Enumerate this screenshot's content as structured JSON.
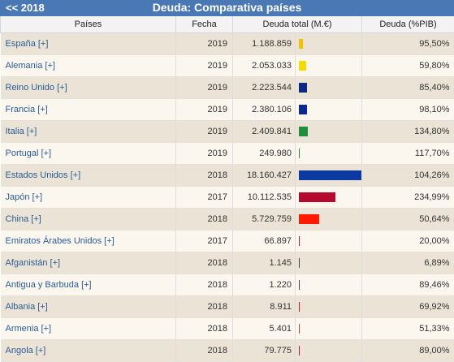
{
  "header": {
    "back": "<< 2018",
    "title": "Deuda: Comparativa países"
  },
  "columns": [
    "Países",
    "Fecha",
    "Deuda total (M.€)",
    "",
    "Deuda (%PIB)"
  ],
  "rows": [
    {
      "country": "España [+]",
      "date": "2019",
      "debt": "1.188.859",
      "debt_value": 1188859,
      "pct": "95,50%",
      "color": "#f2c200"
    },
    {
      "country": "Alemania [+]",
      "date": "2019",
      "debt": "2.053.033",
      "debt_value": 2053033,
      "pct": "59,80%",
      "color": "#f5dc00"
    },
    {
      "country": "Reino Unido [+]",
      "date": "2019",
      "debt": "2.223.544",
      "debt_value": 2223544,
      "pct": "85,40%",
      "color": "#0b2a84"
    },
    {
      "country": "Francia [+]",
      "date": "2019",
      "debt": "2.380.106",
      "debt_value": 2380106,
      "pct": "98,10%",
      "color": "#0b2a90"
    },
    {
      "country": "Italia [+]",
      "date": "2019",
      "debt": "2.409.841",
      "debt_value": 2409841,
      "pct": "134,80%",
      "color": "#1f8f3a"
    },
    {
      "country": "Portugal [+]",
      "date": "2019",
      "debt": "249.980",
      "debt_value": 249980,
      "pct": "117,70%",
      "color": "#1f8f3a"
    },
    {
      "country": "Estados Unidos [+]",
      "date": "2018",
      "debt": "18.160.427",
      "debt_value": 18160427,
      "pct": "104,26%",
      "color": "#0b3aa0"
    },
    {
      "country": "Japón [+]",
      "date": "2017",
      "debt": "10.112.535",
      "debt_value": 10112535,
      "pct": "234,99%",
      "color": "#b50a2d"
    },
    {
      "country": "China [+]",
      "date": "2018",
      "debt": "5.729.759",
      "debt_value": 5729759,
      "pct": "50,64%",
      "color": "#ff1a00"
    },
    {
      "country": "Emiratos Árabes Unidos [+]",
      "date": "2017",
      "debt": "66.897",
      "debt_value": 66897,
      "pct": "20,00%",
      "color": "#c21a2a"
    },
    {
      "country": "Afganistán [+]",
      "date": "2018",
      "debt": "1.145",
      "debt_value": 1145,
      "pct": "6,89%",
      "color": "#444444"
    },
    {
      "country": "Antigua y Barbuda [+]",
      "date": "2018",
      "debt": "1.220",
      "debt_value": 1220,
      "pct": "89,46%",
      "color": "#444444"
    },
    {
      "country": "Albania [+]",
      "date": "2018",
      "debt": "8.911",
      "debt_value": 8911,
      "pct": "69,92%",
      "color": "#c21a2a"
    },
    {
      "country": "Armenia [+]",
      "date": "2018",
      "debt": "5.401",
      "debt_value": 5401,
      "pct": "51,33%",
      "color": "#d33a2a"
    },
    {
      "country": "Angola [+]",
      "date": "2018",
      "debt": "79.775",
      "debt_value": 79775,
      "pct": "89,00%",
      "color": "#c21a2a"
    }
  ]
}
